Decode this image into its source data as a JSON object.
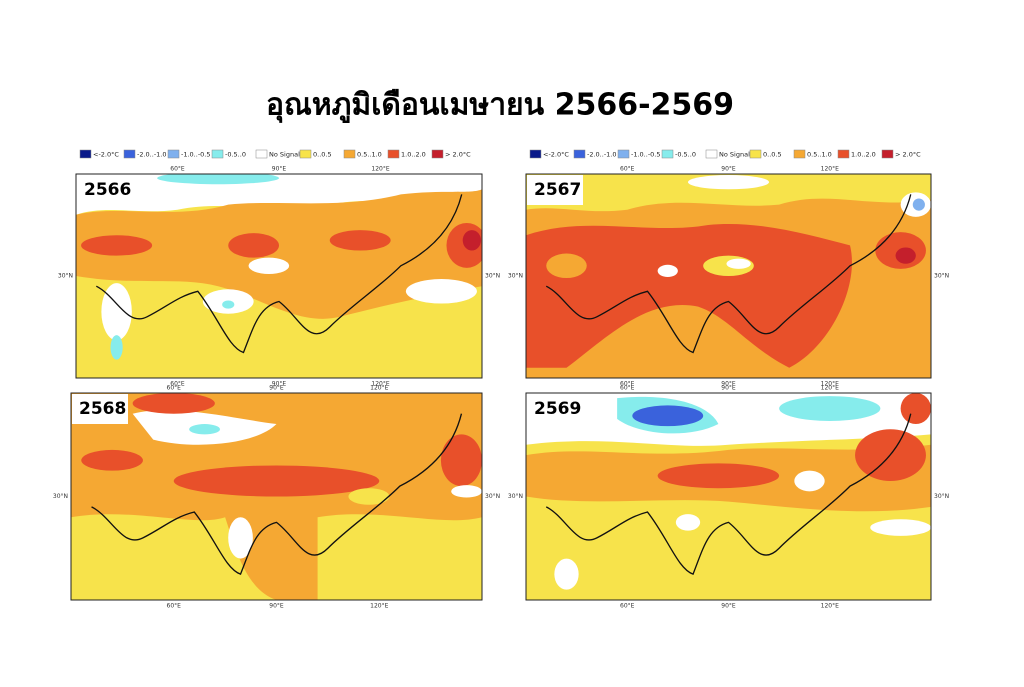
{
  "title": "อุณหภูมิเดือนเมษายน 2566-2569",
  "legend": [
    {
      "label": "<-2.0°C",
      "color": "#0a1a8a"
    },
    {
      "label": "-2.0..-1.0",
      "color": "#3a62dc"
    },
    {
      "label": "-1.0..-0.5",
      "color": "#7fb0ee"
    },
    {
      "label": "-0.5..0",
      "color": "#86ecec"
    },
    {
      "label": "No Signal",
      "color": "#ffffff"
    },
    {
      "label": "0..0.5",
      "color": "#f7e34b"
    },
    {
      "label": "0.5..1.0",
      "color": "#f5a833"
    },
    {
      "label": "1.0..2.0",
      "color": "#e8502a"
    },
    {
      "label": "> 2.0°C",
      "color": "#c41f2c"
    }
  ],
  "lon_labels": [
    "60°E",
    "90°E",
    "120°E"
  ],
  "lat_label": "30°N",
  "panels": [
    {
      "year": "2566"
    },
    {
      "year": "2567"
    },
    {
      "year": "2568"
    },
    {
      "year": "2569"
    }
  ]
}
